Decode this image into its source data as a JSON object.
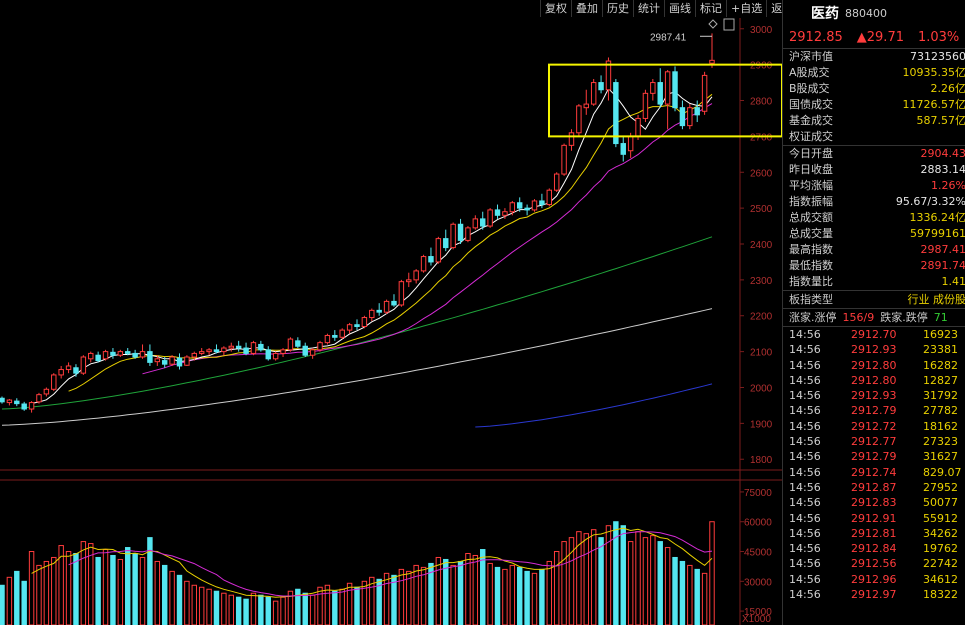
{
  "toolbar": {
    "buttons": [
      "复权",
      "叠加",
      "历史",
      "统计",
      "画线",
      "标记",
      "+自选",
      "返回"
    ]
  },
  "header": {
    "name": "医药",
    "code": "880400"
  },
  "quote": {
    "price": "2912.85",
    "change": "▲29.71",
    "change_pct": "1.03%"
  },
  "stats": [
    {
      "label": "沪深市值",
      "value": "73123560",
      "color": "white"
    },
    {
      "label": "A股成交",
      "value": "10935.35亿",
      "color": "yellow"
    },
    {
      "label": "B股成交",
      "value": "2.26亿",
      "color": "yellow"
    },
    {
      "label": "国债成交",
      "value": "11726.57亿",
      "color": "yellow"
    },
    {
      "label": "基金成交",
      "value": "587.57亿",
      "color": "yellow"
    },
    {
      "label": "权证成交",
      "value": "",
      "color": "yellow"
    }
  ],
  "stats2": [
    {
      "label": "今日开盘",
      "value": "2904.43",
      "color": "red"
    },
    {
      "label": "昨日收盘",
      "value": "2883.14",
      "color": "white"
    },
    {
      "label": "平均涨幅",
      "value": "1.26%",
      "color": "red"
    },
    {
      "label": "指数振幅",
      "value": "95.67/3.32%",
      "color": "white"
    },
    {
      "label": "总成交额",
      "value": "1336.24亿",
      "color": "yellow"
    },
    {
      "label": "总成交量",
      "value": "59799161",
      "color": "yellow"
    },
    {
      "label": "最高指数",
      "value": "2987.41",
      "color": "red"
    },
    {
      "label": "最低指数",
      "value": "2891.74",
      "color": "red"
    },
    {
      "label": "指数量比",
      "value": "1.41",
      "color": "yellow"
    }
  ],
  "board_type": {
    "label": "板指类型",
    "value": "行业 成份股"
  },
  "updown": {
    "label1": "涨家.涨停",
    "v1": "156/9",
    "label2": "跌家.跌停",
    "v2": "71"
  },
  "ticks": [
    {
      "time": "14:56",
      "price": "2912.70",
      "vol": "16923"
    },
    {
      "time": "14:56",
      "price": "2912.93",
      "vol": "23381"
    },
    {
      "time": "14:56",
      "price": "2912.80",
      "vol": "16282"
    },
    {
      "time": "14:56",
      "price": "2912.80",
      "vol": "12827"
    },
    {
      "time": "14:56",
      "price": "2912.93",
      "vol": "31792"
    },
    {
      "time": "14:56",
      "price": "2912.79",
      "vol": "27782"
    },
    {
      "time": "14:56",
      "price": "2912.72",
      "vol": "18162"
    },
    {
      "time": "14:56",
      "price": "2912.77",
      "vol": "27323"
    },
    {
      "time": "14:56",
      "price": "2912.79",
      "vol": "31627"
    },
    {
      "time": "14:56",
      "price": "2912.74",
      "vol": "829.07"
    },
    {
      "time": "14:56",
      "price": "2912.87",
      "vol": "27952"
    },
    {
      "time": "14:56",
      "price": "2912.83",
      "vol": "50077"
    },
    {
      "time": "14:56",
      "price": "2912.91",
      "vol": "55912"
    },
    {
      "time": "14:56",
      "price": "2912.81",
      "vol": "34262"
    },
    {
      "time": "14:56",
      "price": "2912.84",
      "vol": "19762"
    },
    {
      "time": "14:56",
      "price": "2912.56",
      "vol": "22742"
    },
    {
      "time": "14:56",
      "price": "2912.96",
      "vol": "34612"
    },
    {
      "time": "14:56",
      "price": "2912.97",
      "vol": "18322"
    }
  ],
  "colors": {
    "up": "#ff3c3c",
    "down": "#55e6f0",
    "ma5": "#ffffff",
    "ma10": "#e8d000",
    "ma20": "#d42bd4",
    "ma60": "#1fa33a",
    "ma120": "#cccccc",
    "ma250": "#2a38d0",
    "highlight": "#f5f500"
  },
  "chart_data": {
    "type": "candlestick",
    "price_axis": {
      "ticks": [
        "3000",
        "2900",
        "2800",
        "2700",
        "2600",
        "2500",
        "2400",
        "2300",
        "2200",
        "2100",
        "2000",
        "1900",
        "1800"
      ],
      "range": [
        1770,
        3030
      ]
    },
    "volume_axis": {
      "ticks": [
        "75000",
        "60000",
        "45000",
        "30000",
        "15000"
      ],
      "unit": "X1000",
      "range": [
        8000,
        80000
      ]
    },
    "high_annotation": "2987.41",
    "candles": [
      [
        1970,
        1975,
        1955,
        1960
      ],
      [
        1958,
        1968,
        1950,
        1965
      ],
      [
        1962,
        1970,
        1948,
        1955
      ],
      [
        1954,
        1960,
        1935,
        1940
      ],
      [
        1940,
        1962,
        1930,
        1958
      ],
      [
        1960,
        1985,
        1955,
        1980
      ],
      [
        1982,
        2000,
        1975,
        1995
      ],
      [
        1995,
        2040,
        1990,
        2035
      ],
      [
        2035,
        2060,
        2025,
        2050
      ],
      [
        2050,
        2070,
        2040,
        2060
      ],
      [
        2055,
        2065,
        2030,
        2040
      ],
      [
        2040,
        2090,
        2035,
        2085
      ],
      [
        2080,
        2100,
        2070,
        2095
      ],
      [
        2090,
        2100,
        2070,
        2075
      ],
      [
        2080,
        2105,
        2075,
        2100
      ],
      [
        2098,
        2110,
        2080,
        2090
      ],
      [
        2090,
        2105,
        2085,
        2100
      ],
      [
        2100,
        2110,
        2090,
        2095
      ],
      [
        2095,
        2105,
        2080,
        2085
      ],
      [
        2085,
        2120,
        2080,
        2100
      ],
      [
        2100,
        2120,
        2060,
        2070
      ],
      [
        2072,
        2090,
        2060,
        2080
      ],
      [
        2075,
        2085,
        2055,
        2065
      ],
      [
        2065,
        2090,
        2060,
        2085
      ],
      [
        2082,
        2095,
        2050,
        2060
      ],
      [
        2062,
        2090,
        2060,
        2085
      ],
      [
        2085,
        2100,
        2075,
        2095
      ],
      [
        2095,
        2110,
        2090,
        2100
      ],
      [
        2100,
        2110,
        2090,
        2105
      ],
      [
        2105,
        2120,
        2095,
        2100
      ],
      [
        2100,
        2115,
        2090,
        2110
      ],
      [
        2110,
        2125,
        2100,
        2115
      ],
      [
        2115,
        2130,
        2100,
        2110
      ],
      [
        2110,
        2125,
        2090,
        2095
      ],
      [
        2095,
        2130,
        2090,
        2125
      ],
      [
        2120,
        2130,
        2100,
        2105
      ],
      [
        2105,
        2115,
        2075,
        2080
      ],
      [
        2080,
        2100,
        2075,
        2095
      ],
      [
        2095,
        2110,
        2085,
        2105
      ],
      [
        2105,
        2140,
        2100,
        2135
      ],
      [
        2130,
        2140,
        2110,
        2115
      ],
      [
        2115,
        2125,
        2085,
        2090
      ],
      [
        2090,
        2110,
        2080,
        2105
      ],
      [
        2105,
        2130,
        2100,
        2125
      ],
      [
        2125,
        2150,
        2120,
        2145
      ],
      [
        2145,
        2160,
        2130,
        2140
      ],
      [
        2140,
        2165,
        2135,
        2160
      ],
      [
        2160,
        2180,
        2150,
        2175
      ],
      [
        2175,
        2190,
        2160,
        2170
      ],
      [
        2170,
        2200,
        2165,
        2195
      ],
      [
        2195,
        2220,
        2185,
        2215
      ],
      [
        2215,
        2235,
        2200,
        2210
      ],
      [
        2210,
        2245,
        2205,
        2240
      ],
      [
        2240,
        2260,
        2225,
        2230
      ],
      [
        2230,
        2300,
        2225,
        2295
      ],
      [
        2295,
        2320,
        2280,
        2300
      ],
      [
        2300,
        2330,
        2290,
        2325
      ],
      [
        2325,
        2370,
        2320,
        2365
      ],
      [
        2365,
        2390,
        2340,
        2350
      ],
      [
        2350,
        2420,
        2345,
        2415
      ],
      [
        2415,
        2440,
        2380,
        2390
      ],
      [
        2390,
        2460,
        2385,
        2455
      ],
      [
        2455,
        2470,
        2400,
        2410
      ],
      [
        2410,
        2450,
        2405,
        2445
      ],
      [
        2445,
        2480,
        2440,
        2470
      ],
      [
        2470,
        2490,
        2440,
        2450
      ],
      [
        2450,
        2500,
        2445,
        2495
      ],
      [
        2495,
        2510,
        2470,
        2480
      ],
      [
        2480,
        2500,
        2470,
        2490
      ],
      [
        2490,
        2520,
        2480,
        2515
      ],
      [
        2515,
        2530,
        2490,
        2500
      ],
      [
        2500,
        2510,
        2480,
        2495
      ],
      [
        2495,
        2525,
        2490,
        2520
      ],
      [
        2520,
        2540,
        2500,
        2510
      ],
      [
        2510,
        2555,
        2505,
        2550
      ],
      [
        2550,
        2600,
        2545,
        2595
      ],
      [
        2595,
        2680,
        2590,
        2675
      ],
      [
        2675,
        2720,
        2660,
        2710
      ],
      [
        2710,
        2790,
        2700,
        2785
      ],
      [
        2780,
        2830,
        2760,
        2790
      ],
      [
        2790,
        2860,
        2785,
        2850
      ],
      [
        2850,
        2870,
        2820,
        2830
      ],
      [
        2830,
        2920,
        2800,
        2910
      ],
      [
        2850,
        2860,
        2670,
        2680
      ],
      [
        2680,
        2700,
        2630,
        2650
      ],
      [
        2660,
        2710,
        2640,
        2700
      ],
      [
        2700,
        2760,
        2690,
        2750
      ],
      [
        2750,
        2830,
        2740,
        2820
      ],
      [
        2820,
        2860,
        2800,
        2850
      ],
      [
        2850,
        2890,
        2780,
        2790
      ],
      [
        2790,
        2885,
        2720,
        2880
      ],
      [
        2880,
        2895,
        2770,
        2780
      ],
      [
        2780,
        2800,
        2720,
        2730
      ],
      [
        2730,
        2790,
        2720,
        2780
      ],
      [
        2780,
        2800,
        2740,
        2760
      ],
      [
        2770,
        2880,
        2760,
        2870
      ],
      [
        2904,
        2987,
        2891,
        2912
      ]
    ],
    "volumes": [
      28000,
      32000,
      35000,
      30000,
      45000,
      38000,
      40000,
      42000,
      48000,
      45000,
      44000,
      50000,
      49000,
      42000,
      46000,
      43000,
      41000,
      47000,
      44000,
      42000,
      52000,
      40000,
      38000,
      35000,
      33000,
      30000,
      28000,
      27000,
      26000,
      25000,
      24000,
      23000,
      22000,
      21000,
      24000,
      23000,
      22000,
      20000,
      22000,
      25000,
      26000,
      24000,
      23000,
      27000,
      28000,
      25000,
      26000,
      29000,
      27000,
      30000,
      32000,
      31000,
      34000,
      33000,
      36000,
      35000,
      38000,
      37000,
      39000,
      42000,
      41000,
      38000,
      40000,
      44000,
      43000,
      46000,
      39000,
      37000,
      36000,
      38000,
      37000,
      35000,
      34000,
      36000,
      40000,
      45000,
      50000,
      52000,
      55000,
      54000,
      56000,
      52000,
      58000,
      60000,
      58000,
      50000,
      55000,
      52000,
      53000,
      50000,
      47000,
      42000,
      40000,
      38000,
      36000,
      34000,
      60000
    ],
    "indicators": [
      "MA5",
      "MA10",
      "MA20",
      "MA60",
      "MA120",
      "MA250"
    ]
  }
}
